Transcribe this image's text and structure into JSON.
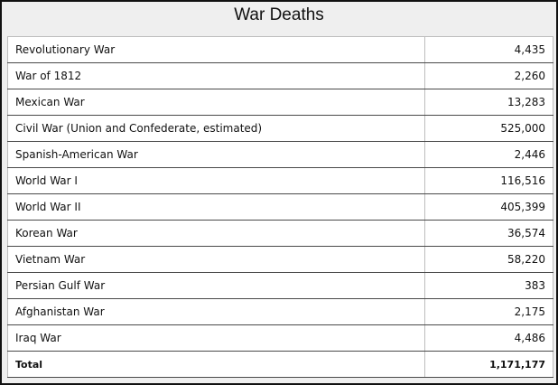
{
  "title": "War Deaths",
  "rows": [
    {
      "war": "Revolutionary War",
      "deaths": "4,435"
    },
    {
      "war": "War of 1812",
      "deaths": "2,260"
    },
    {
      "war": "Mexican War",
      "deaths": "13,283"
    },
    {
      "war": "Civil War (Union and Confederate, estimated)",
      "deaths": "525,000"
    },
    {
      "war": "Spanish-American War",
      "deaths": "2,446"
    },
    {
      "war": "World War I",
      "deaths": "116,516"
    },
    {
      "war": "World War II",
      "deaths": "405,399"
    },
    {
      "war": "Korean War",
      "deaths": "36,574"
    },
    {
      "war": "Vietnam War",
      "deaths": "58,220"
    },
    {
      "war": "Persian Gulf War",
      "deaths": "383"
    },
    {
      "war": "Afghanistan War",
      "deaths": "2,175"
    },
    {
      "war": "Iraq War",
      "deaths": "4,486"
    }
  ],
  "total": {
    "label": "Total",
    "deaths": "1,171,177"
  }
}
